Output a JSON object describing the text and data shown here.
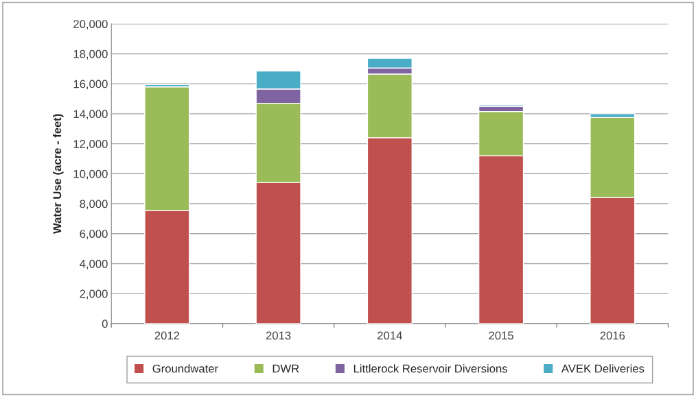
{
  "chart_data": {
    "type": "bar",
    "stacked": true,
    "ylabel": "Water Use (acre - feet)",
    "categories": [
      "2012",
      "2013",
      "2014",
      "2015",
      "2016"
    ],
    "series": [
      {
        "name": "Groundwater",
        "color": "#c0504d",
        "values": [
          7550,
          9400,
          12400,
          11200,
          8400
        ]
      },
      {
        "name": "DWR",
        "color": "#9bbb59",
        "values": [
          8250,
          5300,
          4250,
          2950,
          5350
        ]
      },
      {
        "name": "Littlerock Reservoir Diversions",
        "color": "#8064a2",
        "values": [
          0,
          950,
          400,
          350,
          0
        ]
      },
      {
        "name": "AVEK Deliveries",
        "color": "#4bacc6",
        "values": [
          150,
          1200,
          650,
          100,
          250
        ]
      }
    ],
    "ylim": [
      0,
      20000
    ],
    "yticks": [
      {
        "value": 0,
        "label": "0"
      },
      {
        "value": 2000,
        "label": "2,000"
      },
      {
        "value": 4000,
        "label": "4,000"
      },
      {
        "value": 6000,
        "label": "6,000"
      },
      {
        "value": 8000,
        "label": "8,000"
      },
      {
        "value": 10000,
        "label": "10,000"
      },
      {
        "value": 12000,
        "label": "12,000"
      },
      {
        "value": 14000,
        "label": "14,000"
      },
      {
        "value": 16000,
        "label": "16,000"
      },
      {
        "value": 18000,
        "label": "18,000"
      },
      {
        "value": 20000,
        "label": "20,000"
      }
    ],
    "grid": "y",
    "legend": "bottom"
  }
}
